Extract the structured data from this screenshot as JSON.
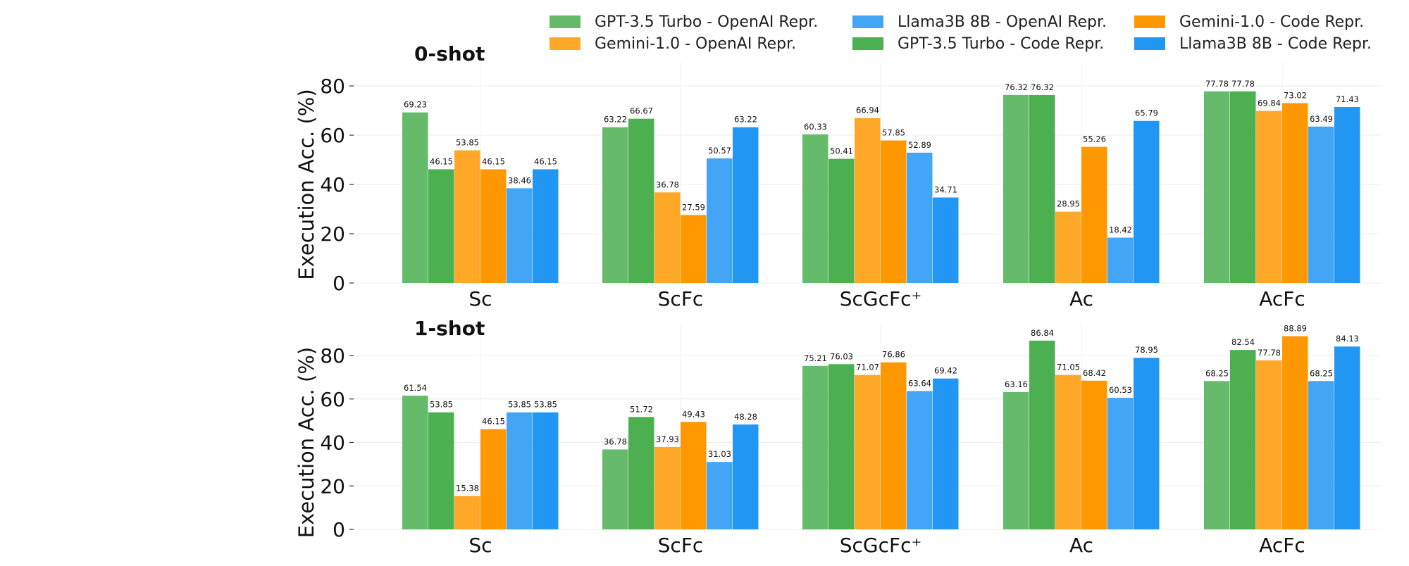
{
  "legend": [
    {
      "label": "GPT-3.5 Turbo - OpenAI Repr.",
      "color": "#66bb6a"
    },
    {
      "label": "Gemini-1.0 - OpenAI Repr.",
      "color": "#ffa726"
    },
    {
      "label": "Llama3B 8B - OpenAI Repr.",
      "color": "#42a5f5"
    },
    {
      "label": "GPT-3.5 Turbo - Code Repr.",
      "color": "#4caf50"
    },
    {
      "label": "Gemini-1.0 - Code Repr.",
      "color": "#ff9800"
    },
    {
      "label": "Llama3B 8B - Code Repr.",
      "color": "#2196f3"
    }
  ],
  "chart_data": [
    {
      "type": "bar",
      "title": "0-shot",
      "ylabel": "Execution Acc. (%)",
      "ylim": [
        0,
        80
      ],
      "yticks": [
        0,
        20,
        40,
        60,
        80
      ],
      "categories": [
        "Sc",
        "ScFc",
        "ScGcFc⁺",
        "Ac",
        "AcFc"
      ],
      "series": [
        {
          "name": "GPT-3.5 Turbo - OpenAI Repr.",
          "color": "#66bb6a",
          "values": [
            69.23,
            63.22,
            60.33,
            76.32,
            77.78
          ]
        },
        {
          "name": "GPT-3.5 Turbo - Code Repr.",
          "color": "#4caf50",
          "values": [
            46.15,
            66.67,
            50.41,
            76.32,
            77.78
          ]
        },
        {
          "name": "Gemini-1.0 - OpenAI Repr.",
          "color": "#ffa726",
          "values": [
            53.85,
            36.78,
            66.94,
            28.95,
            69.84
          ]
        },
        {
          "name": "Gemini-1.0 - Code Repr.",
          "color": "#ff9800",
          "values": [
            46.15,
            27.59,
            57.85,
            55.26,
            73.02
          ]
        },
        {
          "name": "Llama3B 8B - OpenAI Repr.",
          "color": "#42a5f5",
          "values": [
            38.46,
            50.57,
            52.89,
            18.42,
            63.49
          ]
        },
        {
          "name": "Llama3B 8B - Code Repr.",
          "color": "#2196f3",
          "values": [
            46.15,
            63.22,
            34.71,
            65.79,
            71.43
          ]
        }
      ],
      "grid": true
    },
    {
      "type": "bar",
      "title": "1-shot",
      "ylabel": "Execution Acc. (%)",
      "ylim": [
        0,
        80
      ],
      "yticks": [
        0,
        20,
        40,
        60,
        80
      ],
      "categories": [
        "Sc",
        "ScFc",
        "ScGcFc⁺",
        "Ac",
        "AcFc"
      ],
      "series": [
        {
          "name": "GPT-3.5 Turbo - OpenAI Repr.",
          "color": "#66bb6a",
          "values": [
            61.54,
            36.78,
            75.21,
            63.16,
            68.25
          ]
        },
        {
          "name": "GPT-3.5 Turbo - Code Repr.",
          "color": "#4caf50",
          "values": [
            53.85,
            51.72,
            76.03,
            86.84,
            82.54
          ]
        },
        {
          "name": "Gemini-1.0 - OpenAI Repr.",
          "color": "#ffa726",
          "values": [
            15.38,
            37.93,
            71.07,
            71.05,
            77.78
          ]
        },
        {
          "name": "Gemini-1.0 - Code Repr.",
          "color": "#ff9800",
          "values": [
            46.15,
            49.43,
            76.86,
            68.42,
            88.89
          ]
        },
        {
          "name": "Llama3B 8B - OpenAI Repr.",
          "color": "#42a5f5",
          "values": [
            53.85,
            31.03,
            63.64,
            60.53,
            68.25
          ]
        },
        {
          "name": "Llama3B 8B - Code Repr.",
          "color": "#2196f3",
          "values": [
            53.85,
            48.28,
            69.42,
            78.95,
            84.13
          ]
        }
      ],
      "grid": true
    }
  ]
}
